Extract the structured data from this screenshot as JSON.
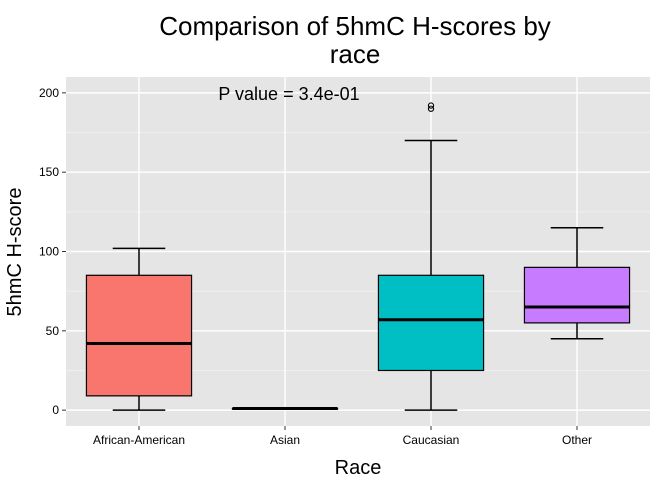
{
  "chart_data": {
    "type": "box",
    "title_lines": [
      "Comparison of 5hmC H-scores by",
      "race"
    ],
    "xlabel": "Race",
    "ylabel": "5hmC H-score",
    "ylim": [
      -10,
      210
    ],
    "yticks": [
      0,
      50,
      100,
      150,
      200
    ],
    "grid": true,
    "annotation": "P value = 3.4e-01",
    "categories": [
      "African-American",
      "Asian",
      "Caucasian",
      "Other"
    ],
    "boxes": [
      {
        "category": "African-American",
        "whisker_low": 0,
        "q1": 9,
        "median": 42,
        "q3": 85,
        "whisker_high": 102,
        "outliers": [],
        "fill": "#F8766D"
      },
      {
        "category": "Asian",
        "whisker_low": 1,
        "q1": 1,
        "median": 1,
        "q3": 1,
        "whisker_high": 1,
        "outliers": [],
        "fill": "#7CAE00"
      },
      {
        "category": "Caucasian",
        "whisker_low": 0,
        "q1": 25,
        "median": 57,
        "q3": 85,
        "whisker_high": 170,
        "outliers": [
          190,
          192
        ],
        "fill": "#00BFC4"
      },
      {
        "category": "Other",
        "whisker_low": 45,
        "q1": 55,
        "median": 65,
        "q3": 90,
        "whisker_high": 115,
        "outliers": [],
        "fill": "#C77CFF"
      }
    ]
  },
  "colors": {
    "panel_bg": "#E5E5E5",
    "grid_major": "#FFFFFF",
    "grid_minor": "#F2F2F2",
    "box_stroke": "#000000"
  }
}
